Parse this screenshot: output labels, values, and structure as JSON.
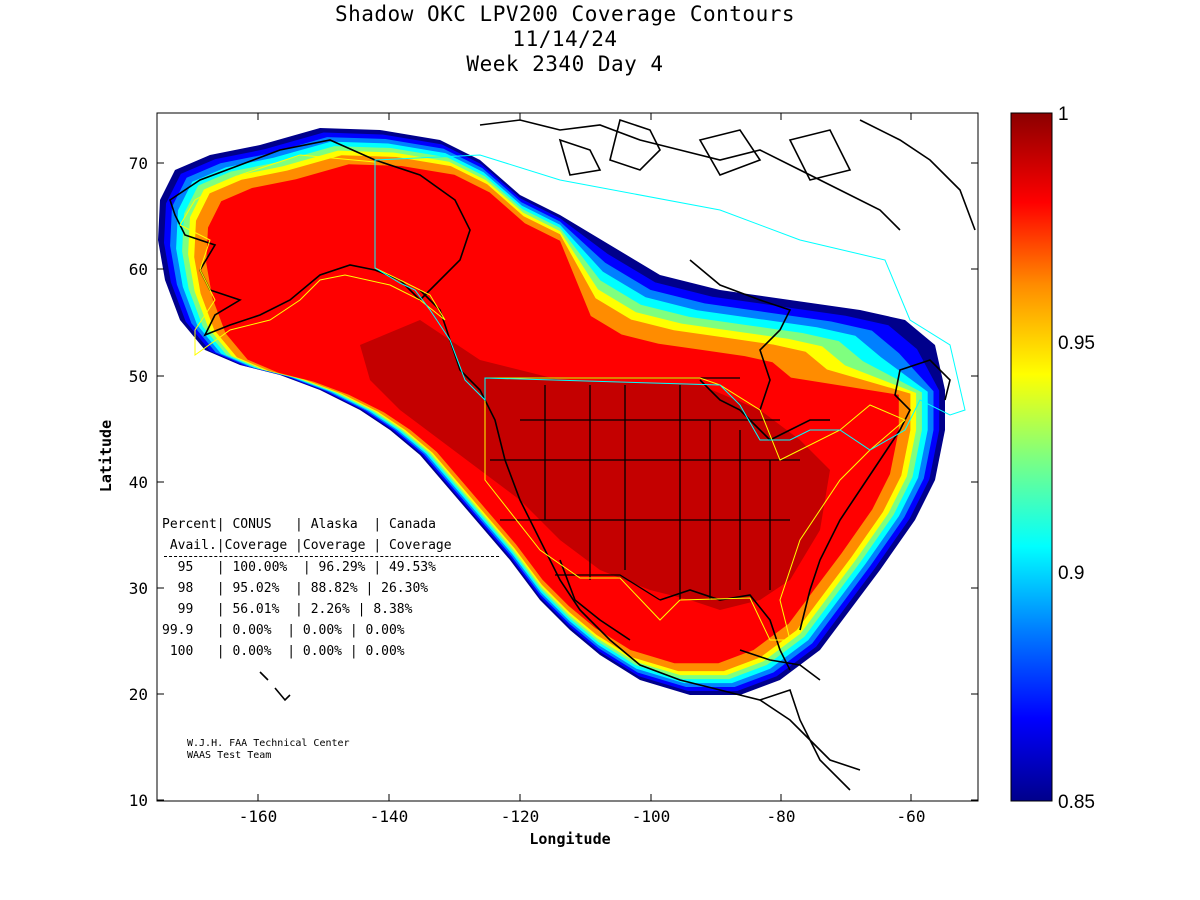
{
  "title": {
    "line1": "Shadow OKC LPV200 Coverage Contours",
    "line2": "11/14/24",
    "line3": "Week 2340 Day 4"
  },
  "axes": {
    "xlabel": "Longitude",
    "ylabel": "Latitude",
    "x_ticks": [
      "-160",
      "-140",
      "-120",
      "-100",
      "-80",
      "-60"
    ],
    "y_ticks": [
      "70",
      "60",
      "50",
      "40",
      "30",
      "20",
      "10"
    ]
  },
  "colorbar": {
    "labels": [
      "1",
      "0.95",
      "0.9",
      "0.85"
    ],
    "colors": [
      "#8b0000",
      "#ff0000",
      "#ff8c00",
      "#ffff00",
      "#7fff7f",
      "#00ffff",
      "#0080ff",
      "#0000ff",
      "#00008b"
    ]
  },
  "table": {
    "header1": "Percent| CONUS   | Alaska  | Canada",
    "header2": " Avail.|Coverage |Coverage | Coverage",
    "rows": [
      "  95   | 100.00%  | 96.29% | 49.53%",
      "  98   | 95.02%  | 88.82% | 26.30%",
      "  99   | 56.01%  | 2.26% | 8.38%",
      "99.9   | 0.00%  | 0.00% | 0.00%",
      " 100   | 0.00%  | 0.00% | 0.00%"
    ]
  },
  "credit": {
    "line1": "W.J.H. FAA Technical Center",
    "line2": "WAAS Test Team"
  },
  "chart_data": {
    "type": "heatmap",
    "title": "Shadow OKC LPV200 Coverage Contours",
    "xlabel": "Longitude",
    "ylabel": "Latitude",
    "xlim": [
      -175,
      -50
    ],
    "ylim": [
      10,
      75
    ],
    "colorbar_range": [
      0.85,
      1
    ],
    "coverage_table": [
      {
        "percent_avail": "95",
        "conus": "100.00%",
        "alaska": "96.29%",
        "canada": "49.53%"
      },
      {
        "percent_avail": "98",
        "conus": "95.02%",
        "alaska": "88.82%",
        "canada": "26.30%"
      },
      {
        "percent_avail": "99",
        "conus": "56.01%",
        "alaska": "2.26%",
        "canada": "8.38%"
      },
      {
        "percent_avail": "99.9",
        "conus": "0.00%",
        "alaska": "0.00%",
        "canada": "0.00%"
      },
      {
        "percent_avail": "100",
        "conus": "0.00%",
        "alaska": "0.00%",
        "canada": "0.00%"
      }
    ]
  }
}
